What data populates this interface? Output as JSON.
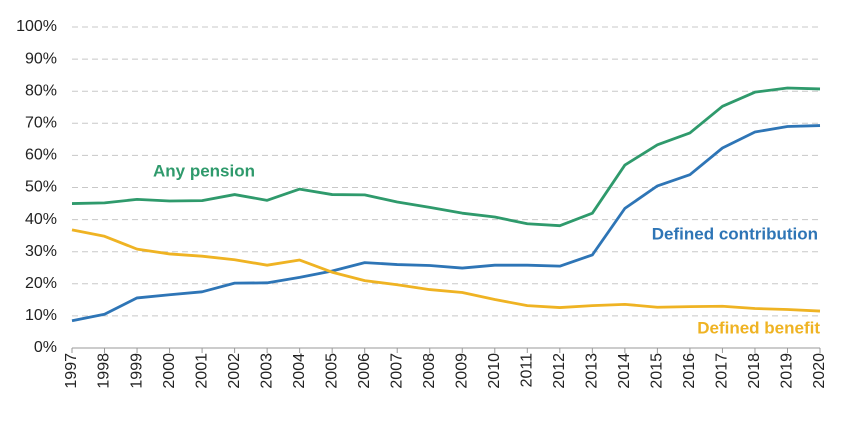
{
  "chart_data": {
    "type": "line",
    "x": [
      1997,
      1998,
      1999,
      2000,
      2001,
      2002,
      2003,
      2004,
      2005,
      2006,
      2007,
      2008,
      2009,
      2010,
      2011,
      2012,
      2013,
      2014,
      2015,
      2016,
      2017,
      2018,
      2019,
      2020
    ],
    "xlim": [
      1997,
      2020
    ],
    "xticks": [
      1997,
      1998,
      1999,
      2000,
      2001,
      2002,
      2003,
      2004,
      2005,
      2006,
      2007,
      2008,
      2009,
      2010,
      2011,
      2012,
      2013,
      2014,
      2015,
      2016,
      2017,
      2018,
      2019,
      2020
    ],
    "ylim": [
      0,
      100
    ],
    "yticks": [
      {
        "value": 0,
        "label": "0%"
      },
      {
        "value": 10,
        "label": "10%"
      },
      {
        "value": 20,
        "label": "20%"
      },
      {
        "value": 30,
        "label": "30%"
      },
      {
        "value": 40,
        "label": "40%"
      },
      {
        "value": 50,
        "label": "50%"
      },
      {
        "value": 60,
        "label": "60%"
      },
      {
        "value": 70,
        "label": "70%"
      },
      {
        "value": 80,
        "label": "80%"
      },
      {
        "value": 90,
        "label": "90%"
      },
      {
        "value": 100,
        "label": "100%"
      }
    ],
    "grid": true,
    "series": [
      {
        "name": "Any pension",
        "color": "#2f9a6c",
        "values": [
          45,
          45.2,
          46.3,
          45.8,
          45.9,
          47.8,
          46,
          49.5,
          47.8,
          47.7,
          45.5,
          43.8,
          42,
          40.8,
          38.7,
          38.1,
          42,
          57,
          63.3,
          67,
          75.3,
          79.7,
          81,
          80.7
        ]
      },
      {
        "name": "Defined contribution",
        "color": "#2e75b6",
        "values": [
          8.5,
          10.5,
          15.6,
          16.6,
          17.5,
          20.2,
          20.3,
          22,
          24,
          26.6,
          26,
          25.7,
          24.9,
          25.8,
          25.8,
          25.5,
          29,
          43.5,
          50.5,
          54,
          62.3,
          67.3,
          69,
          69.3
        ]
      },
      {
        "name": "Defined benefit",
        "color": "#efb323",
        "values": [
          36.8,
          34.8,
          30.8,
          29.3,
          28.6,
          27.5,
          25.8,
          27.4,
          23.6,
          21,
          19.7,
          18.2,
          17.3,
          15.1,
          13.2,
          12.6,
          13.2,
          13.6,
          12.7,
          12.9,
          13,
          12.3,
          12,
          11.5
        ]
      }
    ]
  }
}
